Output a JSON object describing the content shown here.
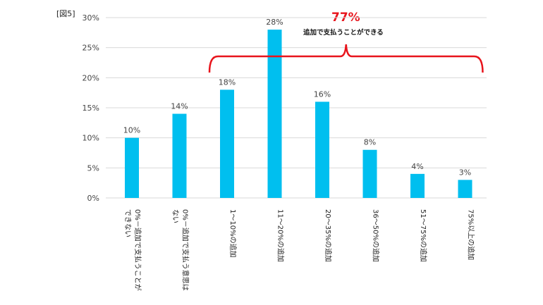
{
  "figure_label": "[図5]",
  "annotation": {
    "percent": "77%",
    "text": "追加で支払うことができる",
    "color": "#e8141c"
  },
  "colors": {
    "bar": "#00bfef",
    "grid": "#d9d9d9",
    "axis_text": "#444444"
  },
  "chart_data": {
    "type": "bar",
    "title": "",
    "xlabel": "",
    "ylabel": "",
    "ylim": [
      0,
      30
    ],
    "yticks": [
      "0%",
      "5%",
      "10%",
      "15%",
      "20%",
      "25%",
      "30%"
    ],
    "grid": true,
    "categories": [
      [
        "0%－追加で支払うことが",
        "できない"
      ],
      [
        "0%－追加で支払う意思は",
        "ない"
      ],
      [
        "1～10%の追加"
      ],
      [
        "11～20%の追加"
      ],
      [
        "20～35%の追加"
      ],
      [
        "36～50%の追加"
      ],
      [
        "51～75%の追加"
      ],
      [
        "75%以上の追加"
      ]
    ],
    "values": [
      10,
      14,
      18,
      28,
      16,
      8,
      4,
      3
    ],
    "value_labels": [
      "10%",
      "14%",
      "18%",
      "28%",
      "16%",
      "8%",
      "4%",
      "3%"
    ],
    "bracket_range": [
      2,
      7
    ]
  }
}
